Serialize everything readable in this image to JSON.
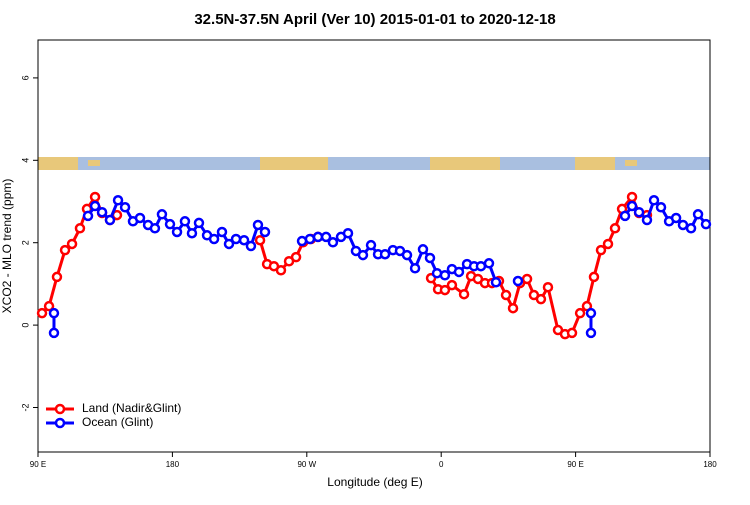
{
  "chart_data": {
    "type": "line",
    "title": "32.5N-37.5N April (Ver 10)   2015-01-01 to 2020-12-18",
    "xlabel": "Longitude (deg E)",
    "ylabel": "XCO2 - MLO trend (ppm)",
    "xlim": [
      90,
      540
    ],
    "ylim": [
      -3.08,
      6.92
    ],
    "xticks": [
      {
        "value": 90,
        "label": "90 E"
      },
      180,
      {
        "value": 270,
        "label": "90 W"
      },
      {
        "value": 360,
        "label": "0"
      },
      {
        "value": 450,
        "label": "90 E"
      },
      {
        "value": 540,
        "label": "180"
      }
    ],
    "yticks": [
      -2,
      0,
      2,
      4,
      6
    ],
    "grid": false,
    "legend": "bottom-left",
    "series": [
      {
        "name": "Land (Nadir&Glint)",
        "color": "#ff0000",
        "x": [
          92.7,
          97.4,
          102.7,
          108.1,
          112.8,
          118.1,
          122.8,
          128.2,
          132.9,
          138.2,
          142.9,
          null,
          238.7,
          243.4,
          248.0,
          252.7,
          258.1,
          262.8,
          267.5,
          272.8,
          277.5,
          null,
          353.2,
          357.9,
          362.5,
          367.2,
          375.3,
          380.0,
          384.6,
          389.3,
          394.0,
          398.7,
          403.4,
          408.1,
          412.8,
          417.5,
          422.1,
          426.8,
          431.5,
          438.2,
          442.9,
          447.6,
          453.0,
          457.6,
          462.3,
          467.0,
          471.7,
          476.4,
          481.1,
          487.8,
          492.5,
          497.8
        ],
        "values": [
          0.29,
          0.46,
          1.17,
          1.82,
          1.97,
          2.35,
          2.82,
          3.11,
          2.72,
          2.55,
          2.67,
          null,
          2.06,
          1.48,
          1.43,
          1.33,
          1.55,
          1.65,
          2.01,
          2.09,
          2.14,
          null,
          1.14,
          0.87,
          0.85,
          0.97,
          0.75,
          1.19,
          1.12,
          1.02,
          1.02,
          1.07,
          0.73,
          0.41,
          1.02,
          1.12,
          0.73,
          0.63,
          0.92,
          -0.12,
          -0.22,
          -0.19,
          0.29,
          0.46,
          1.17,
          1.82,
          1.97,
          2.35,
          2.82,
          3.11,
          2.72,
          2.67
        ]
      },
      {
        "name": "Ocean (Glint)",
        "color": "#0000ff",
        "x": [
          100.7,
          100.7,
          null,
          123.5,
          128.2,
          132.9,
          138.2,
          143.6,
          148.3,
          153.6,
          158.3,
          163.7,
          168.3,
          173.0,
          178.4,
          183.1,
          188.4,
          193.1,
          197.8,
          203.2,
          207.9,
          213.2,
          217.9,
          222.6,
          228.0,
          232.6,
          237.3,
          242.0,
          null,
          266.8,
          272.1,
          277.5,
          282.9,
          287.5,
          292.9,
          297.6,
          302.9,
          307.6,
          313.0,
          317.7,
          322.4,
          327.7,
          332.4,
          337.1,
          342.5,
          347.8,
          352.5,
          357.2,
          362.5,
          367.2,
          371.9,
          377.3,
          382.0,
          386.6,
          392.0,
          396.7,
          null,
          411.4,
          null,
          460.3,
          460.3,
          null,
          483.1,
          487.8,
          492.5,
          497.8,
          502.5,
          507.2,
          512.6,
          517.3,
          521.9,
          527.3,
          532.0,
          537.3
        ],
        "values": [
          0.29,
          -0.19,
          null,
          2.65,
          2.89,
          2.74,
          2.55,
          3.03,
          2.86,
          2.52,
          2.6,
          2.43,
          2.35,
          2.69,
          2.45,
          2.26,
          2.52,
          2.23,
          2.48,
          2.18,
          2.09,
          2.26,
          1.97,
          2.09,
          2.06,
          1.92,
          2.43,
          2.26,
          null,
          2.04,
          2.09,
          2.14,
          2.14,
          2.01,
          2.14,
          2.23,
          1.8,
          1.7,
          1.94,
          1.72,
          1.72,
          1.82,
          1.8,
          1.7,
          1.38,
          1.84,
          1.63,
          1.26,
          1.21,
          1.36,
          1.29,
          1.48,
          1.43,
          1.43,
          1.5,
          1.04,
          null,
          1.07,
          null,
          0.29,
          -0.19,
          null,
          2.65,
          2.89,
          2.74,
          2.55,
          3.03,
          2.86,
          2.52,
          2.6,
          2.43,
          2.35,
          2.69,
          2.45
        ]
      }
    ]
  }
}
